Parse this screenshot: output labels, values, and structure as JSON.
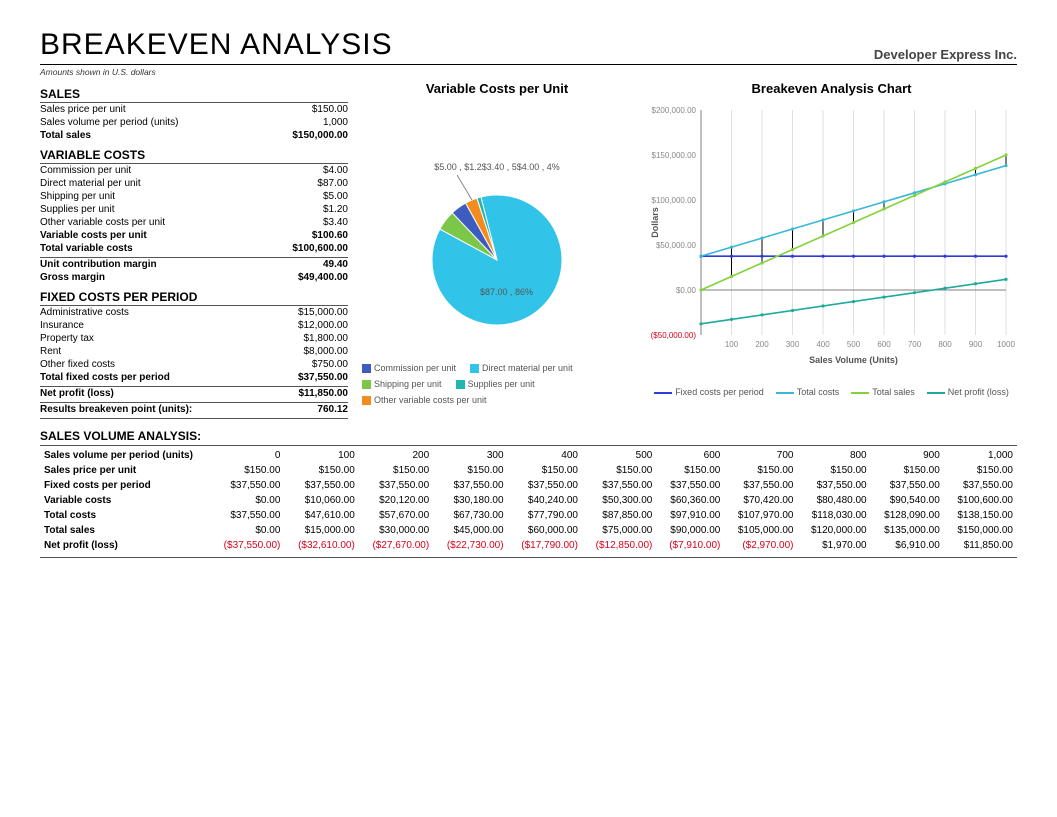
{
  "header": {
    "title": "BREAKEVEN ANALYSIS",
    "company": "Developer Express Inc.",
    "subnote": "Amounts shown in U.S. dollars"
  },
  "sections": {
    "sales": {
      "title": "SALES",
      "rows": [
        {
          "label": "Sales price per unit",
          "value": "$150.00"
        },
        {
          "label": "Sales volume per period (units)",
          "value": "1,000"
        }
      ],
      "total": {
        "label": "Total sales",
        "value": "$150,000.00"
      }
    },
    "variable": {
      "title": "VARIABLE COSTS",
      "rows": [
        {
          "label": "Commission per unit",
          "value": "$4.00"
        },
        {
          "label": "Direct material per unit",
          "value": "$87.00"
        },
        {
          "label": "Shipping per unit",
          "value": "$5.00"
        },
        {
          "label": "Supplies per unit",
          "value": "$1.20"
        },
        {
          "label": "Other variable costs per unit",
          "value": "$3.40"
        }
      ],
      "subtotal1": {
        "label": "Variable costs per unit",
        "value": "$100.60"
      },
      "subtotal2": {
        "label": "Total variable costs",
        "value": "$100,600.00"
      },
      "margin1": {
        "label": "Unit contribution margin",
        "value": "49.40"
      },
      "margin2": {
        "label": "Gross margin",
        "value": "$49,400.00"
      }
    },
    "fixed": {
      "title": "FIXED COSTS PER PERIOD",
      "rows": [
        {
          "label": "Administrative costs",
          "value": "$15,000.00"
        },
        {
          "label": "Insurance",
          "value": "$12,000.00"
        },
        {
          "label": "Property tax",
          "value": "$1,800.00"
        },
        {
          "label": "Rent",
          "value": "$8,000.00"
        },
        {
          "label": "Other fixed costs",
          "value": "$750.00"
        }
      ],
      "total": {
        "label": "Total fixed costs per period",
        "value": "$37,550.00"
      },
      "net": {
        "label": "Net profit (loss)",
        "value": "$11,850.00"
      },
      "breakeven": {
        "label": "Results breakeven point (units):",
        "value": "760.12"
      }
    }
  },
  "pie": {
    "title": "Variable Costs per Unit",
    "slices": [
      {
        "name": "Direct material per unit",
        "value": 87.0,
        "pct": 86,
        "color": "#31c4e8",
        "label": "$87.00 , 86%"
      },
      {
        "name": "Shipping per unit",
        "value": 5.0,
        "pct": 5,
        "color": "#7cc74a",
        "label": "$5.00 ,"
      },
      {
        "name": "Commission per unit",
        "value": 4.0,
        "pct": 4,
        "color": "#3e5bbf",
        "label": "$4.2$3.40 , 5$4.00 , 4%"
      },
      {
        "name": "Other variable costs per unit",
        "value": 3.4,
        "pct": 3,
        "color": "#f28c1f",
        "label": ""
      },
      {
        "name": "Supplies per unit",
        "value": 1.2,
        "pct": 1,
        "color": "#1fb8b0",
        "label": ""
      }
    ],
    "legend": [
      {
        "label": "Commission per unit",
        "color": "#3e5bbf"
      },
      {
        "label": "Direct material per unit",
        "color": "#31c4e8"
      },
      {
        "label": "Shipping per unit",
        "color": "#7cc74a"
      },
      {
        "label": "Supplies per unit",
        "color": "#1fb8b0"
      },
      {
        "label": "Other variable costs per unit",
        "color": "#f28c1f"
      }
    ]
  },
  "lineChart": {
    "title": "Breakeven Analysis Chart",
    "xlabel": "Sales Volume (Units)",
    "ylabel": "Dollars",
    "xlim": [
      0,
      1000
    ],
    "xtick_step": 100,
    "ylim": [
      -50000,
      200000
    ],
    "ytick_step": 50000,
    "ytick_labels": [
      "($50,000.00)",
      "$0.00",
      "$50,000.00",
      "$100,000.00",
      "$150,000.00",
      "$200,000.00"
    ],
    "neg_color": "#d9001b",
    "grid_color": "#bfbfbf",
    "axis_color": "#808080",
    "series": [
      {
        "name": "Fixed costs per period",
        "color": "#2e3bd6",
        "y0": 37550,
        "y1": 37550
      },
      {
        "name": "Total costs",
        "color": "#38b7d8",
        "y0": 37550,
        "y1": 138150
      },
      {
        "name": "Total sales",
        "color": "#84d23b",
        "y0": 0,
        "y1": 150000
      },
      {
        "name": "Net profit (loss)",
        "color": "#1ea99a",
        "y0": -37550,
        "y1": 11850
      }
    ]
  },
  "analysis": {
    "title": "SALES VOLUME ANALYSIS:",
    "columns": [
      "",
      "0",
      "100",
      "200",
      "300",
      "400",
      "500",
      "600",
      "700",
      "800",
      "900",
      "1,000"
    ],
    "rows": [
      {
        "label": "Sales volume per period (units)",
        "cells": [
          "0",
          "100",
          "200",
          "300",
          "400",
          "500",
          "600",
          "700",
          "800",
          "900",
          "1,000"
        ]
      },
      {
        "label": "Sales price per unit",
        "cells": [
          "$150.00",
          "$150.00",
          "$150.00",
          "$150.00",
          "$150.00",
          "$150.00",
          "$150.00",
          "$150.00",
          "$150.00",
          "$150.00",
          "$150.00"
        ]
      },
      {
        "label": "Fixed costs per period",
        "cells": [
          "$37,550.00",
          "$37,550.00",
          "$37,550.00",
          "$37,550.00",
          "$37,550.00",
          "$37,550.00",
          "$37,550.00",
          "$37,550.00",
          "$37,550.00",
          "$37,550.00",
          "$37,550.00"
        ]
      },
      {
        "label": "Variable costs",
        "cells": [
          "$0.00",
          "$10,060.00",
          "$20,120.00",
          "$30,180.00",
          "$40,240.00",
          "$50,300.00",
          "$60,360.00",
          "$70,420.00",
          "$80,480.00",
          "$90,540.00",
          "$100,600.00"
        ]
      },
      {
        "label": "Total costs",
        "cells": [
          "$37,550.00",
          "$47,610.00",
          "$57,670.00",
          "$67,730.00",
          "$77,790.00",
          "$87,850.00",
          "$97,910.00",
          "$107,970.00",
          "$118,030.00",
          "$128,090.00",
          "$138,150.00"
        ]
      },
      {
        "label": "Total sales",
        "cells": [
          "$0.00",
          "$15,000.00",
          "$30,000.00",
          "$45,000.00",
          "$60,000.00",
          "$75,000.00",
          "$90,000.00",
          "$105,000.00",
          "$120,000.00",
          "$135,000.00",
          "$150,000.00"
        ]
      },
      {
        "label": "Net profit (loss)",
        "cells": [
          "($37,550.00)",
          "($32,610.00)",
          "($27,670.00)",
          "($22,730.00)",
          "($17,790.00)",
          "($12,850.00)",
          "($7,910.00)",
          "($2,970.00)",
          "$1,970.00",
          "$6,910.00",
          "$11,850.00"
        ]
      }
    ]
  }
}
